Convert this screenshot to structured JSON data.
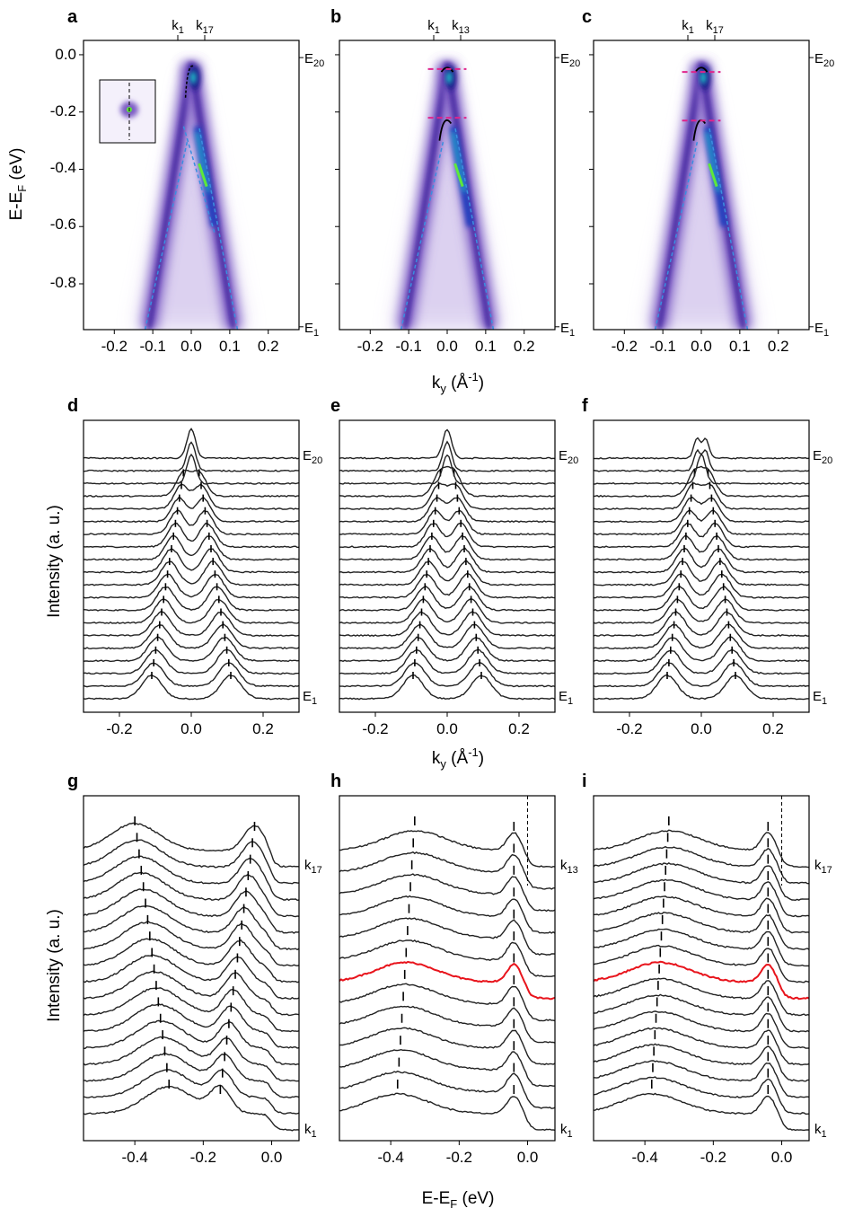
{
  "chart_data": [
    {
      "type": "heatmap",
      "panel": "a",
      "title": "",
      "xlabel": "k_y (Å⁻¹)",
      "ylabel": "E-E_F (eV)",
      "xlim": [
        -0.28,
        0.28
      ],
      "ylim": [
        -0.96,
        0.05
      ],
      "xticks": [
        "-0.2",
        "-0.1",
        "0.0",
        "0.1",
        "0.2"
      ],
      "yticks": [
        "0.0",
        "-0.2",
        "-0.4",
        "-0.6",
        "-0.8"
      ],
      "top_markers": [
        "k1",
        "k17"
      ],
      "right_markers": [
        "E20",
        "E1"
      ],
      "inset": true
    },
    {
      "type": "heatmap",
      "panel": "b",
      "xlabel": "k_y (Å⁻¹)",
      "xlim": [
        -0.28,
        0.28
      ],
      "xticks": [
        "-0.2",
        "-0.1",
        "0.0",
        "0.1",
        "0.2"
      ],
      "top_markers": [
        "k1",
        "k13"
      ],
      "right_markers": [
        "E20",
        "E1"
      ],
      "dashed_energies": [
        -0.05,
        -0.22
      ]
    },
    {
      "type": "heatmap",
      "panel": "c",
      "xlabel": "k_y (Å⁻¹)",
      "xlim": [
        -0.28,
        0.28
      ],
      "xticks": [
        "-0.2",
        "-0.1",
        "0.0",
        "0.1",
        "0.2"
      ],
      "top_markers": [
        "k1",
        "k17"
      ],
      "right_markers": [
        "E20",
        "E1"
      ],
      "dashed_energies": [
        -0.06,
        -0.23
      ]
    },
    {
      "type": "line",
      "panel": "d",
      "series_count": 20,
      "xlabel": "k_y (Å⁻¹)",
      "ylabel": "Intensity (a. u.)",
      "xlim": [
        -0.3,
        0.3
      ],
      "xticks": [
        "-0.2",
        "0.0",
        "0.2"
      ],
      "labels": [
        "E20",
        "E1"
      ]
    },
    {
      "type": "line",
      "panel": "e",
      "series_count": 20,
      "xlabel": "k_y (Å⁻¹)",
      "xlim": [
        -0.3,
        0.3
      ],
      "xticks": [
        "-0.2",
        "0.0",
        "0.2"
      ],
      "labels": [
        "E20",
        "E1"
      ]
    },
    {
      "type": "line",
      "panel": "f",
      "series_count": 20,
      "xlabel": "k_y (Å⁻¹)",
      "xlim": [
        -0.3,
        0.3
      ],
      "xticks": [
        "-0.2",
        "0.0",
        "0.2"
      ],
      "labels": [
        "E20",
        "E1"
      ]
    },
    {
      "type": "line",
      "panel": "g",
      "series_count": 17,
      "xlabel": "E-E_F (eV)",
      "ylabel": "Intensity (a. u.)",
      "xlim": [
        -0.55,
        0.08
      ],
      "xticks": [
        "-0.4",
        "-0.2",
        "0.0"
      ],
      "labels": [
        "k17",
        "k1"
      ]
    },
    {
      "type": "line",
      "panel": "h",
      "series_count": 13,
      "xlabel": "E-E_F (eV)",
      "xlim": [
        -0.55,
        0.08
      ],
      "xticks": [
        "-0.4",
        "-0.2",
        "0.0"
      ],
      "labels": [
        "k13",
        "k1"
      ],
      "highlight_color": "#e8141c"
    },
    {
      "type": "line",
      "panel": "i",
      "series_count": 17,
      "xlabel": "E-E_F (eV)",
      "xlim": [
        -0.55,
        0.08
      ],
      "xticks": [
        "-0.4",
        "-0.2",
        "0.0"
      ],
      "labels": [
        "k17",
        "k1"
      ],
      "highlight_color": "#e8141c"
    }
  ],
  "colors": {
    "map_dark": "#3a1a9a",
    "map_mid": "#7b5cc4",
    "map_light": "#d9cdef",
    "hot": "#1ad0d0",
    "hot2": "#5ee83a",
    "dash_blue": "#3a8ee0",
    "dash_magenta": "#e0248c",
    "red": "#e8141c"
  },
  "text": {
    "panel_a": "a",
    "panel_b": "b",
    "panel_c": "c",
    "panel_d": "d",
    "panel_e": "e",
    "panel_f": "f",
    "panel_g": "g",
    "panel_h": "h",
    "panel_i": "i",
    "k1": "k",
    "k1_sub": "1",
    "k17_sub": "17",
    "k13_sub": "13",
    "E_base": "E",
    "E20_sub": "20",
    "E1_sub": "1",
    "ky_axis": "k",
    "ky_sub": "y",
    "ky_unit": " (Å",
    "ky_unit_sup": "-1",
    "ky_close": ")",
    "energy_ylabel": "E-E",
    "energy_sub": "F",
    "energy_unit": " (eV)",
    "intensity_label": "Intensity (a. u.)",
    "x_energy_label": "E-E",
    "x_energy_sub": "F",
    "x_energy_unit": " (eV)",
    "tick_m02": "-0.2",
    "tick_m01": "-0.1",
    "tick_00": "0.0",
    "tick_01": "0.1",
    "tick_02": "0.2",
    "ytick_0": "0.0",
    "ytick_m2": "-0.2",
    "ytick_m4": "-0.4",
    "ytick_m6": "-0.6",
    "ytick_m8": "-0.8",
    "etick_m4": "-0.4",
    "etick_m2": "-0.2",
    "etick_0": "0.0"
  }
}
